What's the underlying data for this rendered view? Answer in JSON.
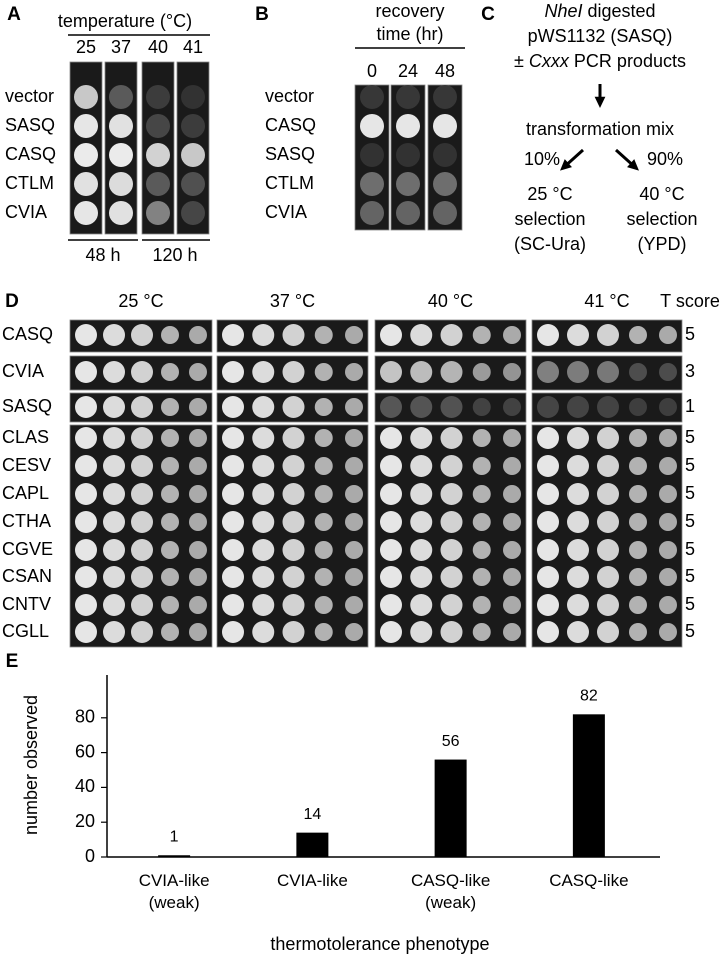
{
  "panel_a": {
    "label": "A",
    "header": "temperature (°C)",
    "temperatures": [
      "25",
      "37",
      "40",
      "41"
    ],
    "strains": [
      "vector",
      "SASQ",
      "CASQ",
      "CTLM",
      "CVIA"
    ],
    "times": [
      "48 h",
      "120 h"
    ]
  },
  "panel_b": {
    "label": "B",
    "header": [
      "recovery",
      "time (hr)"
    ],
    "times": [
      "0",
      "24",
      "48"
    ],
    "strains": [
      "vector",
      "CASQ",
      "SASQ",
      "CTLM",
      "CVIA"
    ]
  },
  "panel_c": {
    "label": "C",
    "step1": [
      "NheI",
      "digested"
    ],
    "step2": "pWS1132 (SASQ)",
    "step3": [
      "±",
      "Cxxx",
      "PCR products"
    ],
    "mix": "transformation mix",
    "left": {
      "percent": "10%",
      "lines": [
        "25 °C",
        "selection",
        "(SC-Ura)"
      ]
    },
    "right": {
      "percent": "90%",
      "lines": [
        "40 °C",
        "selection",
        "(YPD)"
      ]
    }
  },
  "panel_d": {
    "label": "D",
    "temperatures": [
      "25 °C",
      "37 °C",
      "40 °C",
      "41 °C"
    ],
    "score_header": "T score",
    "rows": [
      {
        "strain": "CASQ",
        "score": "5"
      },
      {
        "strain": "CVIA",
        "score": "3"
      },
      {
        "strain": "SASQ",
        "score": "1"
      },
      {
        "strain": "CLAS",
        "score": "5"
      },
      {
        "strain": "CESV",
        "score": "5"
      },
      {
        "strain": "CAPL",
        "score": "5"
      },
      {
        "strain": "CTHA",
        "score": "5"
      },
      {
        "strain": "CGVE",
        "score": "5"
      },
      {
        "strain": "CSAN",
        "score": "5"
      },
      {
        "strain": "CNTV",
        "score": "5"
      },
      {
        "strain": "CGLL",
        "score": "5"
      }
    ]
  },
  "chart_data": {
    "type": "bar",
    "panel_label": "E",
    "categories": [
      "CVIA-like (weak)",
      "CVIA-like",
      "CASQ-like (weak)",
      "CASQ-like"
    ],
    "values": [
      1,
      14,
      56,
      82
    ],
    "color": "#000000",
    "ylim": [
      0,
      100
    ],
    "yticks": [
      0,
      20,
      40,
      60,
      80
    ],
    "y_label": "number observed",
    "x_label": "thermotolerance phenotype"
  }
}
